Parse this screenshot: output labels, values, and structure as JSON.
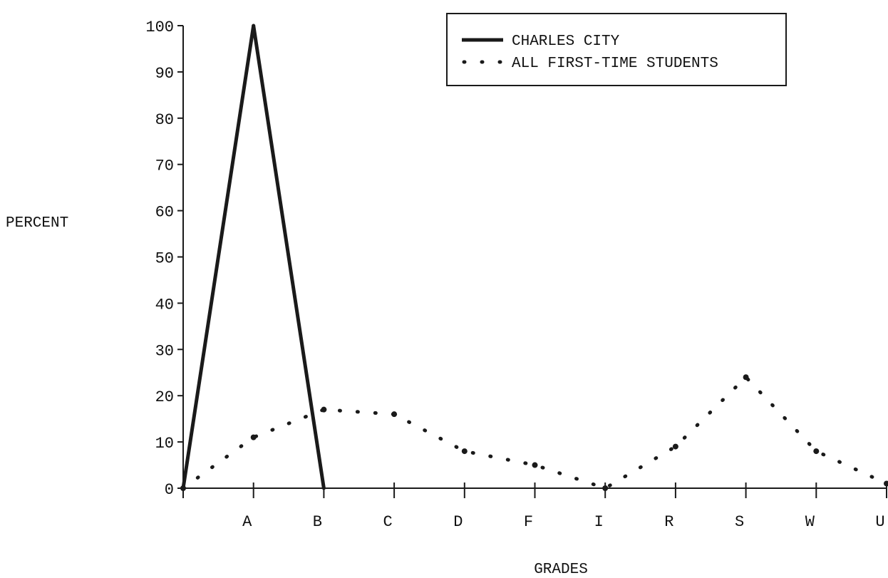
{
  "chart_data": {
    "type": "line",
    "title": "",
    "xlabel": "GRADES",
    "ylabel": "PERCENT",
    "ylim": [
      0,
      100
    ],
    "yticks": [
      0,
      10,
      20,
      30,
      40,
      50,
      60,
      70,
      80,
      90,
      100
    ],
    "categories": [
      "",
      "A",
      "B",
      "C",
      "D",
      "F",
      "I",
      "R",
      "S",
      "W",
      "U"
    ],
    "legend_position": "top-right",
    "grid": false,
    "series": [
      {
        "name": "CHARLES CITY",
        "style": "solid",
        "color": "#1a1a1a",
        "values": [
          0,
          100,
          0,
          null,
          null,
          null,
          null,
          null,
          null,
          null,
          null
        ]
      },
      {
        "name": "ALL FIRST-TIME STUDENTS",
        "style": "dotted",
        "color": "#1a1a1a",
        "values": [
          0,
          11,
          17,
          16,
          8,
          5,
          0,
          9,
          24,
          8,
          1
        ]
      }
    ]
  }
}
